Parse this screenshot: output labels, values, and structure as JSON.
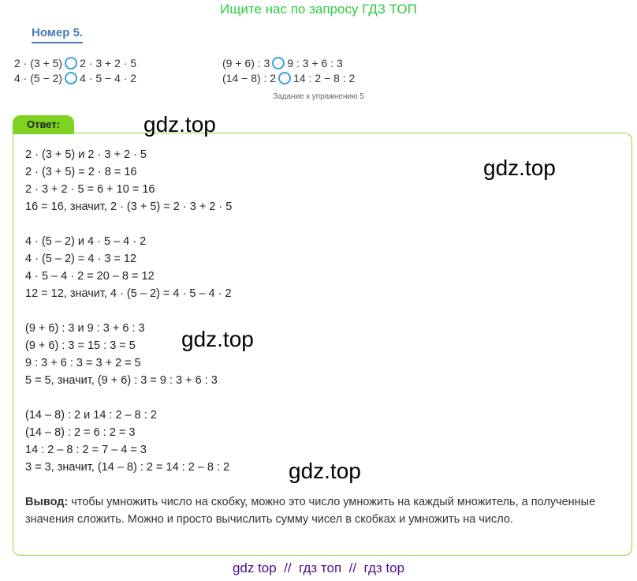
{
  "header": "Ищите нас по запросу ГДЗ ТОП",
  "number": "Номер 5.",
  "task": {
    "left": [
      [
        "2 · (3 + 5)",
        "2 · 3 + 2 · 5"
      ],
      [
        "4 · (5 − 2)",
        "4 · 5 − 4 · 2"
      ]
    ],
    "right": [
      [
        "(9 + 6) : 3",
        "9 : 3 + 6 : 3"
      ],
      [
        "(14 − 8) : 2",
        "14 : 2 − 8 : 2"
      ]
    ]
  },
  "caption": "Задание к упражнению 5",
  "answer_label": "Ответ:",
  "lines": [
    "2 · (3 + 5) и 2 · 3 + 2 · 5",
    "2 · (3 + 5) = 2 · 8 = 16",
    "2 · 3 + 2 · 5 = 6 + 10 = 16",
    "16 = 16, значит, 2 · (3 + 5) = 2 · 3 + 2 · 5",
    "",
    "4 · (5 – 2) и 4 · 5 – 4 · 2",
    "4 · (5 – 2) = 4 · 3 = 12",
    "4 · 5 – 4 · 2 = 20 – 8 = 12",
    "12 = 12, значит, 4 · (5 – 2) = 4 · 5 – 4 · 2",
    "",
    "(9 + 6) : 3 и 9 : 3 + 6 : 3",
    "(9 + 6) : 3 = 15 : 3 = 5",
    "9 : 3 + 6 : 3 = 3 + 2 = 5",
    "5 = 5, значит, (9 + 6) : 3 = 9 : 3 + 6 : 3",
    "",
    "(14 – 8) : 2 и 14 : 2 – 8 : 2",
    "(14 – 8) : 2 = 6 : 2 = 3",
    "14 : 2 – 8 : 2 = 7 – 4 = 3",
    "3 = 3, значит, (14 – 8) : 2 = 14 : 2 – 8 : 2"
  ],
  "conclusion": {
    "label": "Вывод:",
    "text": " чтобы умножить число на скобку, можно это число умножить на каждый множитель, а полученные значения сложить. Можно и просто вычислить сумму чисел в скобках и умножить на число."
  },
  "watermark": "gdz.top",
  "footer": "gdz top  //  гдз топ  //  гдз top"
}
